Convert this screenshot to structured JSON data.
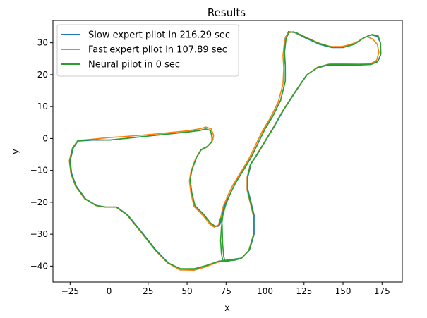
{
  "chart_data": {
    "type": "line",
    "title": "Results",
    "xlabel": "x",
    "ylabel": "y",
    "xlim": [
      -36,
      188
    ],
    "ylim": [
      -45,
      37
    ],
    "xticks": [
      -25,
      0,
      25,
      50,
      75,
      100,
      125,
      150,
      175
    ],
    "yticks": [
      -40,
      -30,
      -20,
      -10,
      0,
      10,
      20,
      30
    ],
    "grid": false,
    "legend_position": "upper-left",
    "series": [
      {
        "name": "Slow expert pilot in 216.29 sec",
        "color": "#1f77b4",
        "points": [
          [
            0,
            -0.5
          ],
          [
            -10,
            -0.5
          ],
          [
            -20,
            -0.8
          ],
          [
            -23,
            -3
          ],
          [
            -25,
            -7
          ],
          [
            -24,
            -11
          ],
          [
            -21,
            -15
          ],
          [
            -15,
            -19
          ],
          [
            -8,
            -21
          ],
          [
            -2,
            -21.5
          ],
          [
            5,
            -21.5
          ],
          [
            12,
            -24
          ],
          [
            22,
            -30
          ],
          [
            30,
            -35
          ],
          [
            38,
            -39
          ],
          [
            46,
            -41
          ],
          [
            55,
            -41
          ],
          [
            62,
            -40
          ],
          [
            70,
            -38.5
          ],
          [
            78,
            -38
          ],
          [
            85,
            -37.5
          ],
          [
            90,
            -35
          ],
          [
            93,
            -30
          ],
          [
            93,
            -24
          ],
          [
            91,
            -20
          ],
          [
            89,
            -16
          ],
          [
            89,
            -12
          ],
          [
            91,
            -8
          ],
          [
            95,
            -5
          ],
          [
            100,
            -1
          ],
          [
            105,
            3
          ],
          [
            112,
            9
          ],
          [
            120,
            15
          ],
          [
            127,
            20
          ],
          [
            133,
            22
          ],
          [
            140,
            23
          ],
          [
            150,
            23
          ],
          [
            160,
            23
          ],
          [
            168,
            23.2
          ],
          [
            172,
            24
          ],
          [
            174,
            26
          ],
          [
            174,
            30
          ],
          [
            172,
            32
          ],
          [
            168,
            32.5
          ],
          [
            163,
            31.5
          ],
          [
            157,
            29.5
          ],
          [
            150,
            28.5
          ],
          [
            143,
            28.5
          ],
          [
            135,
            29.5
          ],
          [
            126,
            31.5
          ],
          [
            119,
            33.2
          ],
          [
            115,
            33.5
          ],
          [
            113,
            31.5
          ],
          [
            112,
            27
          ],
          [
            113,
            23
          ],
          [
            113,
            18
          ],
          [
            110,
            12
          ],
          [
            105,
            7
          ],
          [
            100,
            3
          ],
          [
            96,
            -1
          ],
          [
            91,
            -6
          ],
          [
            86,
            -10
          ],
          [
            81,
            -14
          ],
          [
            78,
            -17
          ],
          [
            74,
            -21
          ],
          [
            72,
            -25
          ],
          [
            71,
            -27
          ],
          [
            70,
            -27.5
          ],
          [
            68,
            -27.5
          ],
          [
            65,
            -26.5
          ],
          [
            61,
            -24
          ],
          [
            55,
            -21
          ],
          [
            53,
            -17
          ],
          [
            52,
            -13
          ],
          [
            53,
            -10
          ],
          [
            56,
            -6
          ],
          [
            59,
            -3.5
          ],
          [
            63,
            -2.5
          ],
          [
            66,
            -1
          ],
          [
            66,
            0.5
          ],
          [
            65,
            2.5
          ],
          [
            62,
            3
          ],
          [
            58,
            2.5
          ],
          [
            50,
            2
          ],
          [
            40,
            1.5
          ],
          [
            30,
            1
          ],
          [
            20,
            0.5
          ],
          [
            10,
            0
          ],
          [
            0,
            -0.5
          ]
        ]
      },
      {
        "name": "Fast expert pilot in 107.89 sec",
        "color": "#ff7f0e",
        "points": [
          [
            0,
            0.3
          ],
          [
            -10,
            -0.2
          ],
          [
            -20,
            -0.6
          ],
          [
            -23.5,
            -3
          ],
          [
            -25.5,
            -7
          ],
          [
            -24.5,
            -11
          ],
          [
            -21.5,
            -15
          ],
          [
            -15.5,
            -19
          ],
          [
            -8.5,
            -21
          ],
          [
            -2.5,
            -21.5
          ],
          [
            4.5,
            -21.5
          ],
          [
            11.5,
            -24
          ],
          [
            21.5,
            -30
          ],
          [
            29.5,
            -35
          ],
          [
            37.5,
            -39
          ],
          [
            45.5,
            -41.2
          ],
          [
            54.5,
            -41.3
          ],
          [
            61.5,
            -40.3
          ],
          [
            69.5,
            -38.8
          ],
          [
            77.5,
            -38.2
          ],
          [
            84.5,
            -37.7
          ],
          [
            89.5,
            -35.2
          ],
          [
            92.5,
            -30.2
          ],
          [
            92.5,
            -24.2
          ],
          [
            90.5,
            -20.2
          ],
          [
            88.5,
            -16.2
          ],
          [
            88.5,
            -12.2
          ],
          [
            90.5,
            -8.2
          ],
          [
            94.5,
            -5.2
          ],
          [
            99.5,
            -1.2
          ],
          [
            104.5,
            2.8
          ],
          [
            111.5,
            8.8
          ],
          [
            119.5,
            14.8
          ],
          [
            126.5,
            19.8
          ],
          [
            133.5,
            22.3
          ],
          [
            141,
            23.3
          ],
          [
            151,
            23.5
          ],
          [
            160,
            23.3
          ],
          [
            168,
            23.5
          ],
          [
            171.5,
            24.5
          ],
          [
            173,
            27
          ],
          [
            172,
            29.5
          ],
          [
            169,
            31.2
          ],
          [
            165,
            32
          ],
          [
            160,
            30.5
          ],
          [
            155,
            29.5
          ],
          [
            149,
            28.8
          ],
          [
            142,
            28.8
          ],
          [
            134,
            30
          ],
          [
            125,
            32
          ],
          [
            118,
            33.5
          ],
          [
            114.5,
            33
          ],
          [
            112.5,
            30.5
          ],
          [
            111.5,
            26
          ],
          [
            112,
            22
          ],
          [
            111.5,
            17
          ],
          [
            108.5,
            11.5
          ],
          [
            103.5,
            6.5
          ],
          [
            98.5,
            2.5
          ],
          [
            94.5,
            -1.5
          ],
          [
            89.5,
            -6.5
          ],
          [
            84.5,
            -10.5
          ],
          [
            79.5,
            -14.5
          ],
          [
            76.5,
            -17.5
          ],
          [
            73,
            -21.5
          ],
          [
            71.5,
            -25
          ],
          [
            70,
            -27.2
          ],
          [
            67.5,
            -27.8
          ],
          [
            64.5,
            -26.8
          ],
          [
            60.5,
            -24.3
          ],
          [
            54.5,
            -21.3
          ],
          [
            52.5,
            -17.3
          ],
          [
            51.5,
            -13.3
          ],
          [
            52.5,
            -10.3
          ],
          [
            55.5,
            -6.3
          ],
          [
            58.5,
            -3.8
          ],
          [
            62.5,
            -2.8
          ],
          [
            66.5,
            -0.5
          ],
          [
            67,
            1
          ],
          [
            65.5,
            3
          ],
          [
            62,
            3.6
          ],
          [
            58,
            3
          ],
          [
            50,
            2.4
          ],
          [
            40,
            1.9
          ],
          [
            30,
            1.4
          ],
          [
            20,
            1
          ],
          [
            10,
            0.6
          ],
          [
            0,
            0.3
          ]
        ]
      },
      {
        "name": "Neural pilot in 0 sec",
        "color": "#2ca02c",
        "points": [
          [
            0,
            -0.5
          ],
          [
            -10,
            -0.4
          ],
          [
            -20,
            -0.7
          ],
          [
            -23.3,
            -3
          ],
          [
            -25.3,
            -7
          ],
          [
            -24.3,
            -11
          ],
          [
            -21.3,
            -15
          ],
          [
            -15.3,
            -19
          ],
          [
            -8.3,
            -21
          ],
          [
            -2.3,
            -21.5
          ],
          [
            4.7,
            -21.5
          ],
          [
            11.7,
            -24
          ],
          [
            21.7,
            -30
          ],
          [
            29.7,
            -35
          ],
          [
            37.7,
            -39
          ],
          [
            45.7,
            -40.8
          ],
          [
            54.7,
            -40.8
          ],
          [
            61.7,
            -39.9
          ],
          [
            69.7,
            -38.6
          ],
          [
            77.7,
            -38
          ],
          [
            84.7,
            -37.6
          ],
          [
            89.7,
            -35.1
          ],
          [
            92.7,
            -30.1
          ],
          [
            92.7,
            -24.1
          ],
          [
            90.7,
            -20.1
          ],
          [
            88.7,
            -16.1
          ],
          [
            88.7,
            -12.1
          ],
          [
            90.7,
            -8.1
          ],
          [
            94.7,
            -5.1
          ],
          [
            99.7,
            -1.1
          ],
          [
            104.7,
            2.9
          ],
          [
            111.7,
            8.9
          ],
          [
            119.7,
            14.9
          ],
          [
            126.7,
            19.9
          ],
          [
            133.5,
            22.2
          ],
          [
            140.5,
            23.2
          ],
          [
            150.5,
            23.2
          ],
          [
            160,
            23.1
          ],
          [
            168.5,
            23.3
          ],
          [
            172.5,
            24.3
          ],
          [
            174.3,
            26.5
          ],
          [
            174,
            30
          ],
          [
            172.5,
            32.2
          ],
          [
            168.5,
            32.6
          ],
          [
            163.5,
            31.6
          ],
          [
            157.5,
            29.6
          ],
          [
            150.5,
            28.6
          ],
          [
            143.5,
            28.6
          ],
          [
            135.5,
            29.6
          ],
          [
            126.5,
            31.6
          ],
          [
            119.5,
            33.3
          ],
          [
            115.5,
            33.4
          ],
          [
            113.5,
            31.3
          ],
          [
            112.5,
            27
          ],
          [
            113,
            23
          ],
          [
            113,
            18
          ],
          [
            110,
            12
          ],
          [
            105,
            7
          ],
          [
            100,
            3
          ],
          [
            96,
            -1
          ],
          [
            91,
            -6
          ],
          [
            86,
            -10
          ],
          [
            81,
            -14
          ],
          [
            78,
            -17
          ],
          [
            75,
            -20.5
          ],
          [
            73,
            -24
          ],
          [
            72,
            -28
          ],
          [
            71.5,
            -32
          ],
          [
            72,
            -36
          ],
          [
            73,
            -38.4
          ],
          [
            75,
            -38.6
          ],
          [
            77.5,
            -38.3
          ],
          [
            81,
            -38.1
          ],
          [
            84.7,
            -37.6
          ],
          [
            78,
            -38
          ],
          [
            74.5,
            -38.6
          ],
          [
            73.5,
            -37
          ],
          [
            72.8,
            -33
          ],
          [
            72.5,
            -27
          ],
          [
            71.5,
            -25
          ],
          [
            70.5,
            -27.3
          ],
          [
            67.8,
            -27.5
          ],
          [
            65,
            -26.5
          ],
          [
            61,
            -24
          ],
          [
            55,
            -21
          ],
          [
            53,
            -17
          ],
          [
            52,
            -13
          ],
          [
            53,
            -10
          ],
          [
            56,
            -6
          ],
          [
            59,
            -3.5
          ],
          [
            63,
            -2.5
          ],
          [
            66,
            -1
          ],
          [
            66,
            0.5
          ],
          [
            65,
            2.5
          ],
          [
            62,
            3
          ],
          [
            58,
            2.5
          ],
          [
            50,
            2
          ],
          [
            40,
            1.5
          ],
          [
            30,
            1
          ],
          [
            20,
            0.5
          ],
          [
            10,
            0
          ],
          [
            0,
            -0.5
          ]
        ]
      }
    ]
  }
}
